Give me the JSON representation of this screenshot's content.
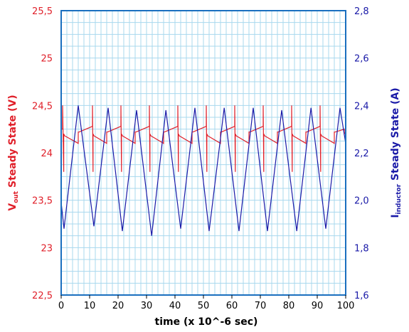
{
  "chart_data": {
    "type": "line",
    "title": "",
    "xlabel": "time  (x 10^-6 sec)",
    "ylabel_left": {
      "main": "V",
      "sub": "out",
      "rest": " Steady State (V)"
    },
    "ylabel_right": {
      "main": "I",
      "sub": "inductor",
      "rest": " Steady State (A)"
    },
    "xlim": [
      0,
      100
    ],
    "ylim_left": [
      22.5,
      25.5
    ],
    "ylim_right": [
      1.6,
      2.8
    ],
    "x_ticks": [
      "0",
      "10",
      "20",
      "30",
      "40",
      "50",
      "60",
      "70",
      "80",
      "90",
      "100"
    ],
    "y_left_ticks": [
      "22,5",
      "23",
      "23,5",
      "24",
      "24,5",
      "25",
      "25,5"
    ],
    "y_right_ticks": [
      "1,6",
      "1,8",
      "2,0",
      "2,2",
      "2,4",
      "2,6",
      "2,8"
    ],
    "grid": true,
    "colors": {
      "vout": "#e0202a",
      "inductor": "#1a1aa8",
      "grid": "#a8d8ee",
      "frame": "#1a6fbf"
    },
    "series": [
      {
        "axis": "left",
        "color": "#e0202a",
        "x": [
          0,
          0.5,
          0.5,
          0.9,
          0.9,
          1.2,
          6,
          6,
          6.3,
          11,
          11,
          11.2,
          11.2,
          11.5,
          16,
          16,
          16.3,
          21,
          21,
          21.2,
          21.2,
          21.5,
          26,
          26,
          26.3,
          31,
          31,
          31.2,
          31.2,
          31.5,
          36,
          36,
          36.3,
          41,
          41,
          41.2,
          41.2,
          41.5,
          46,
          46,
          46.3,
          51,
          51,
          51.2,
          51.2,
          51.5,
          56,
          56,
          56.3,
          61,
          61,
          61.2,
          61.2,
          61.5,
          66,
          66,
          66.3,
          71,
          71,
          71.2,
          71.2,
          71.5,
          76,
          76,
          76.3,
          81,
          81,
          81.2,
          81.2,
          81.5,
          86,
          86,
          86.3,
          91,
          91,
          91.2,
          91.2,
          91.5,
          96,
          96,
          96.3,
          99.5,
          99.5,
          100
        ],
        "y": [
          24.25,
          24.25,
          24.5,
          23.8,
          24.2,
          24.18,
          24.1,
          24.22,
          24.22,
          24.28,
          24.5,
          23.8,
          24.2,
          24.18,
          24.1,
          24.22,
          24.22,
          24.28,
          24.5,
          23.8,
          24.2,
          24.18,
          24.1,
          24.22,
          24.22,
          24.28,
          24.5,
          23.8,
          24.2,
          24.18,
          24.1,
          24.22,
          24.22,
          24.28,
          24.5,
          23.8,
          24.2,
          24.18,
          24.1,
          24.22,
          24.22,
          24.28,
          24.5,
          23.8,
          24.2,
          24.18,
          24.1,
          24.22,
          24.22,
          24.28,
          24.5,
          23.8,
          24.2,
          24.18,
          24.1,
          24.22,
          24.22,
          24.28,
          24.5,
          23.8,
          24.2,
          24.18,
          24.1,
          24.22,
          24.22,
          24.28,
          24.5,
          23.8,
          24.2,
          24.18,
          24.1,
          24.22,
          24.22,
          24.28,
          24.5,
          23.8,
          24.2,
          24.18,
          24.1,
          24.22,
          24.22,
          24.25,
          24.2,
          24.22
        ]
      },
      {
        "axis": "right",
        "color": "#1a1aa8",
        "x": [
          0,
          1,
          6,
          11.5,
          16.5,
          21.5,
          26.5,
          31.8,
          36.8,
          42,
          47,
          52,
          57.3,
          62.5,
          67.5,
          72.5,
          77.5,
          82.8,
          87.8,
          93,
          98,
          100
        ],
        "y": [
          1.99,
          1.88,
          2.4,
          1.89,
          2.39,
          1.87,
          2.38,
          1.85,
          2.38,
          1.88,
          2.39,
          1.87,
          2.39,
          1.87,
          2.39,
          1.87,
          2.38,
          1.87,
          2.39,
          1.88,
          2.39,
          2.24
        ]
      }
    ]
  }
}
